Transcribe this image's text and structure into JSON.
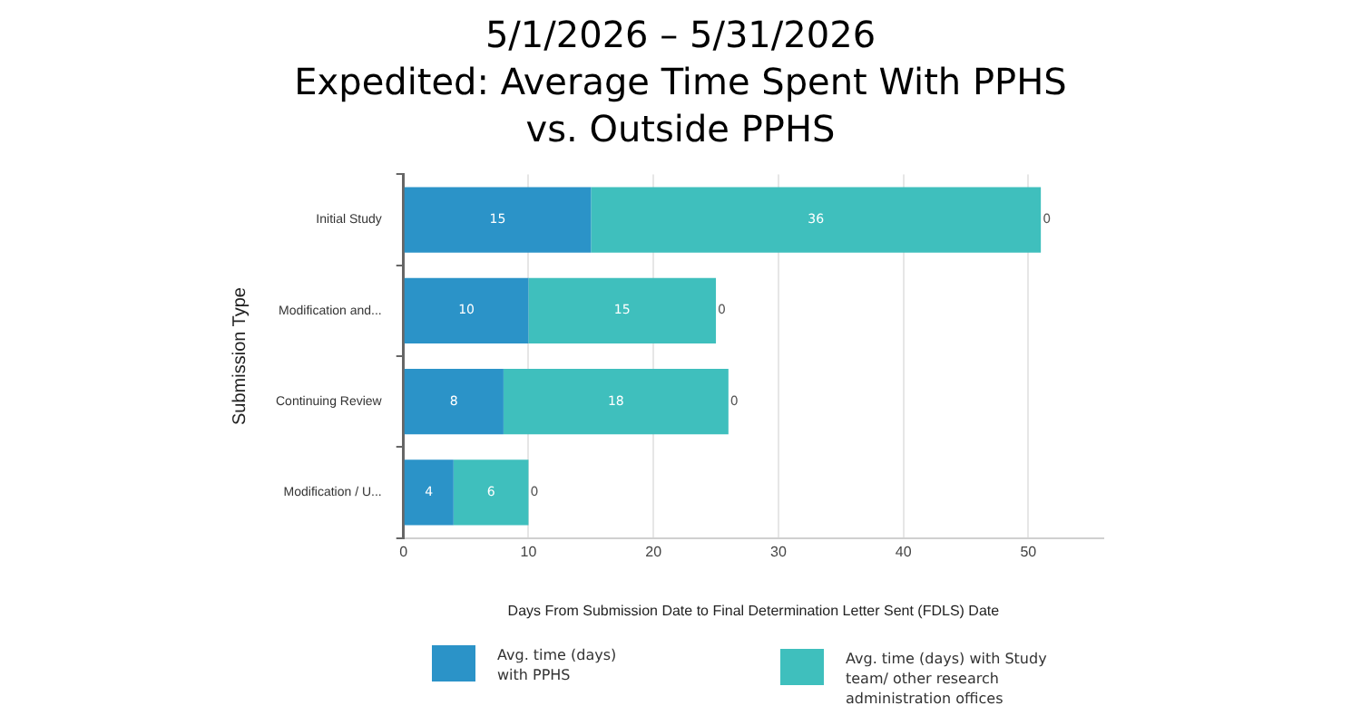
{
  "chart_data": {
    "type": "bar",
    "orientation": "horizontal",
    "stacked": true,
    "title": "5/1/2026 – 5/31/2026",
    "subtitle": "Expedited: Average Time Spent With PPHS vs. Outside PPHS",
    "xlabel": "Days From Submission Date to Final Determination Letter Sent (FDLS) Date",
    "ylabel": "Submission Type",
    "categories": [
      "Initial Study",
      "Modification and...",
      "Continuing Review",
      "Modification / U..."
    ],
    "series": [
      {
        "name": "Avg. time (days) with PPHS",
        "color": "#2b93c8",
        "values": [
          15,
          10,
          8,
          4
        ]
      },
      {
        "name": "Avg. time (days) with Study team/ other research administration offices",
        "color": "#3fbfbd",
        "values": [
          36,
          15,
          18,
          6
        ]
      },
      {
        "color": "#555555",
        "values": [
          0,
          0,
          0,
          0
        ]
      }
    ],
    "xlim": [
      0,
      56
    ],
    "xticks": [
      0,
      10,
      20,
      30,
      40,
      50
    ],
    "grid": "x",
    "data_labels": true,
    "legend": "bottom"
  }
}
